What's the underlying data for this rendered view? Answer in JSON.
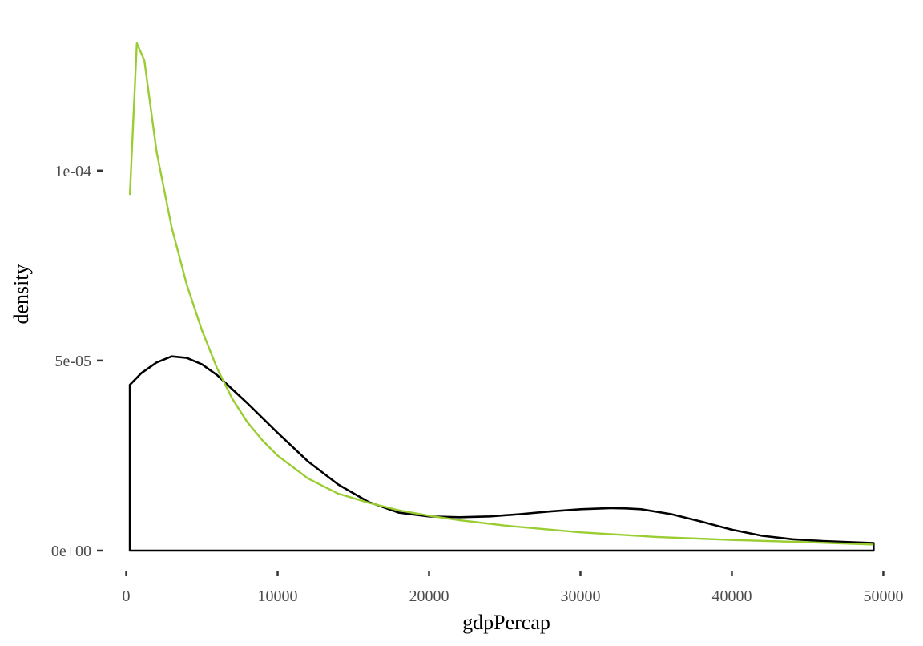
{
  "chart_data": {
    "type": "line",
    "title": "",
    "xlabel": "gdpPercap",
    "ylabel": "density",
    "xlim": [
      -400,
      50400
    ],
    "ylim": [
      -3.8e-06,
      0.0001375
    ],
    "x_ticks": [
      0,
      10000,
      20000,
      30000,
      40000,
      50000
    ],
    "x_tick_labels": [
      "0",
      "10000",
      "20000",
      "30000",
      "40000",
      "50000"
    ],
    "y_ticks": [
      0,
      5e-05,
      0.0001
    ],
    "y_tick_labels": [
      "0e+00",
      "5e-05",
      "1e-04"
    ],
    "grid": false,
    "legend": "none",
    "series": [
      {
        "kind": "density",
        "color": "#000000",
        "filled": false,
        "x": [
          241,
          1000,
          2000,
          3000,
          4000,
          5000,
          6000,
          7000,
          8000,
          10000,
          12000,
          14000,
          16000,
          18000,
          20000,
          22000,
          24000,
          26000,
          28000,
          30000,
          32000,
          33000,
          34000,
          36000,
          38000,
          40000,
          42000,
          44000,
          46000,
          48000,
          49357
        ],
        "y": [
          4.36e-05,
          4.67e-05,
          4.95e-05,
          5.11e-05,
          5.07e-05,
          4.9e-05,
          4.62e-05,
          4.25e-05,
          3.88e-05,
          3.1e-05,
          2.35e-05,
          1.74e-05,
          1.28e-05,
          1e-05,
          9e-06,
          8.8e-06,
          9e-06,
          9.6e-06,
          1.03e-05,
          1.09e-05,
          1.12e-05,
          1.11e-05,
          1.09e-05,
          9.6e-06,
          7.6e-06,
          5.5e-06,
          3.9e-06,
          3e-06,
          2.5e-06,
          2.2e-06,
          2e-06
        ]
      },
      {
        "kind": "reference",
        "color": "#9acd32",
        "x": [
          241,
          700,
          1200,
          2000,
          3000,
          4000,
          5000,
          6000,
          7000,
          8000,
          9000,
          10000,
          12000,
          14000,
          16000,
          18000,
          20000,
          22000,
          25000,
          30000,
          35000,
          40000,
          45000,
          49357
        ],
        "y": [
          9.36e-05,
          0.0001335,
          0.000129,
          0.000105,
          8.5e-05,
          7e-05,
          5.8e-05,
          4.8e-05,
          4e-05,
          3.38e-05,
          2.9e-05,
          2.5e-05,
          1.9e-05,
          1.5e-05,
          1.26e-05,
          1.06e-05,
          9.2e-06,
          8e-06,
          6.6e-06,
          4.8e-06,
          3.6e-06,
          2.8e-06,
          2.2e-06,
          1.6e-06
        ]
      }
    ]
  }
}
